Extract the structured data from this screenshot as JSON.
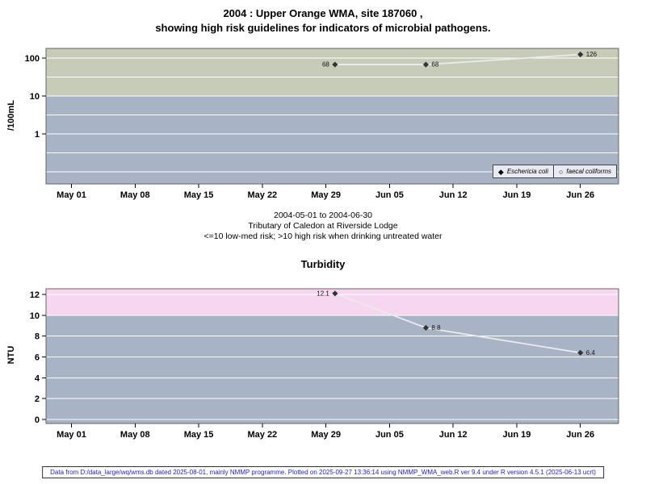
{
  "header": {
    "title_line1": "2004 : Upper Orange WMA, site 187060 ,",
    "title_line2": "showing high risk guidelines for indicators of microbial pathogens."
  },
  "subtitle": {
    "line1": "2004-05-01 to 2004-06-30",
    "line2": "Tributary of Caledon at Riverside Lodge",
    "line3": "<=10 low-med risk; >10 high risk when drinking untreated water"
  },
  "footer": {
    "text": "Data from D:/data_large/wq/wms.db dated 2025-08-01, mainly NMMP programme. Plotted on 2025-09-27 13:36:14 using NMMP_WMA_web.R ver 9.4 under R version 4.5.1 (2025-06-13 ucrt)"
  },
  "chart_data": [
    {
      "type": "line",
      "name": "microbial-pathogens-chart",
      "title": "",
      "xlabel": "",
      "ylabel": "/100mL",
      "yscale": "log",
      "ylim": [
        -1.32,
        2.26
      ],
      "xlim": [
        -2.8,
        60.2
      ],
      "x_range": [
        "2004-05-01",
        "2004-06-30"
      ],
      "grid": true,
      "border_color": "#666666",
      "line_color": "#ebebeb",
      "marker_color": "#333333",
      "x_ticks": [
        {
          "day": 0,
          "label": "May 01"
        },
        {
          "day": 7,
          "label": "May 08"
        },
        {
          "day": 14,
          "label": "May 15"
        },
        {
          "day": 21,
          "label": "May 22"
        },
        {
          "day": 28,
          "label": "May 29"
        },
        {
          "day": 35,
          "label": "Jun 05"
        },
        {
          "day": 42,
          "label": "Jun 12"
        },
        {
          "day": 49,
          "label": "Jun 19"
        },
        {
          "day": 56,
          "label": "Jun 26"
        }
      ],
      "yticks": [
        {
          "value": 1,
          "label": "1"
        },
        {
          "value": 10,
          "label": "10"
        },
        {
          "value": 100,
          "label": "100"
        }
      ],
      "gridlines": [
        0.1,
        0.3162,
        1,
        3.162,
        10,
        31.62,
        100
      ],
      "bands": [
        {
          "name": "high-risk-band",
          "from": 10,
          "to": null,
          "color": "#c6ccb8"
        },
        {
          "name": "low-risk-band",
          "from": null,
          "to": 10,
          "color": "#a8b4c6"
        }
      ],
      "risk_note": "<=10 low-med risk; >10 high risk when drinking untreated water",
      "legend": [
        "Eschericia coli",
        "faecal coliforms"
      ],
      "series": [
        {
          "name": "Eschericia coli",
          "marker": "filled-diamond",
          "points": [
            {
              "date": "2004-05-30",
              "day": 29,
              "value": 68,
              "label": "68",
              "label_side": "left"
            },
            {
              "date": "2004-06-09",
              "day": 39,
              "value": 68,
              "label": "68",
              "label_side": "right"
            },
            {
              "date": "2004-06-26",
              "day": 56,
              "value": 126,
              "label": "126",
              "label_side": "right"
            }
          ]
        },
        {
          "name": "faecal coliforms",
          "marker": "open-circle",
          "points": []
        }
      ]
    },
    {
      "type": "line",
      "name": "turbidity-chart",
      "title": "Turbidity",
      "xlabel": "",
      "ylabel": "NTU",
      "yscale": "linear",
      "ylim": [
        -0.4,
        12.55
      ],
      "xlim": [
        -2.8,
        60.2
      ],
      "x_range": [
        "2004-05-01",
        "2004-06-30"
      ],
      "grid": true,
      "border_color": "#666666",
      "line_color": "#ebebeb",
      "marker_color": "#333333",
      "x_ticks": [
        {
          "day": 0,
          "label": "May 01"
        },
        {
          "day": 7,
          "label": "May 08"
        },
        {
          "day": 14,
          "label": "May 15"
        },
        {
          "day": 21,
          "label": "May 22"
        },
        {
          "day": 28,
          "label": "May 29"
        },
        {
          "day": 35,
          "label": "Jun 05"
        },
        {
          "day": 42,
          "label": "Jun 12"
        },
        {
          "day": 49,
          "label": "Jun 19"
        },
        {
          "day": 56,
          "label": "Jun 26"
        }
      ],
      "yticks": [
        {
          "value": 0,
          "label": "0"
        },
        {
          "value": 2,
          "label": "2"
        },
        {
          "value": 4,
          "label": "4"
        },
        {
          "value": 6,
          "label": "6"
        },
        {
          "value": 8,
          "label": "8"
        },
        {
          "value": 10,
          "label": "10"
        },
        {
          "value": 12,
          "label": "12"
        }
      ],
      "gridlines": [
        0,
        2,
        4,
        6,
        8,
        10,
        12
      ],
      "bands": [
        {
          "name": "high-turbidity-band",
          "from": 10,
          "to": null,
          "color": "#f7d7ef"
        },
        {
          "name": "low-turbidity-band",
          "from": null,
          "to": 10,
          "color": "#a8b4c6"
        }
      ],
      "series": [
        {
          "name": "Turbidity",
          "marker": "filled-diamond",
          "points": [
            {
              "date": "2004-05-30",
              "day": 29,
              "value": 12.1,
              "label": "12.1",
              "label_side": "left"
            },
            {
              "date": "2004-06-09",
              "day": 39,
              "value": 8.8,
              "label": "8.8",
              "label_side": "right"
            },
            {
              "date": "2004-06-26",
              "day": 56,
              "value": 6.4,
              "label": "6.4",
              "label_side": "right"
            }
          ]
        }
      ]
    }
  ]
}
